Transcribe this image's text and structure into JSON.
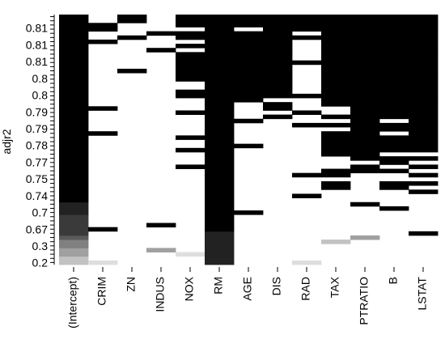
{
  "chart_data": {
    "type": "heatmap",
    "ylabel": "adjr2",
    "xlabel": "",
    "title": "",
    "variables": [
      "(Intercept)",
      "CRIM",
      "ZN",
      "INDUS",
      "NOX",
      "RM",
      "AGE",
      "DIS",
      "RAD",
      "TAX",
      "PTRATIO",
      "B",
      "LSTAT"
    ],
    "y_tick_labels": [
      "0.2",
      "0.3",
      "0.67",
      "0.7",
      "0.74",
      "0.75",
      "0.77",
      "0.78",
      "0.79",
      "0.79",
      "0.8",
      "0.8",
      "0.81",
      "0.81",
      "0.81"
    ],
    "n_models": 60,
    "row_order": "bottom-to-top (row 0 = lowest adjr2)",
    "shade_levels": [
      "#ffffff",
      "#dedede",
      "#c2c2c2",
      "#a0a0a0",
      "#808080",
      "#5a5a5a",
      "#3a3a3a",
      "#222222",
      "#000000"
    ],
    "intercept_shades": [
      2,
      2,
      3,
      3,
      4,
      4,
      5,
      6,
      6,
      6,
      6,
      6,
      7,
      7,
      7
    ],
    "rm_shades": [
      7,
      7,
      7,
      7,
      7,
      7,
      7,
      7
    ],
    "inclusion_runs": {
      "CRIM": [
        [
          0,
          0,
          1
        ],
        [
          8,
          8,
          8
        ],
        [
          31,
          31,
          8
        ],
        [
          37,
          37,
          8
        ],
        [
          53,
          53,
          8
        ],
        [
          56,
          56,
          8
        ],
        [
          57,
          57,
          8
        ]
      ],
      "ZN": [
        [
          46,
          46,
          8
        ],
        [
          54,
          54,
          8
        ],
        [
          58,
          59,
          8
        ]
      ],
      "INDUS": [
        [
          3,
          3,
          3
        ],
        [
          9,
          9,
          8
        ],
        [
          51,
          51,
          8
        ],
        [
          55,
          55,
          8
        ]
      ],
      "NOX": [
        [
          2,
          2,
          1
        ],
        [
          23,
          23,
          8
        ],
        [
          27,
          27,
          8
        ],
        [
          30,
          30,
          8
        ],
        [
          36,
          36,
          8
        ],
        [
          40,
          40,
          8
        ],
        [
          41,
          41,
          8
        ],
        [
          44,
          44,
          8
        ],
        [
          45,
          50,
          8
        ],
        [
          52,
          52,
          8
        ],
        [
          54,
          55,
          8
        ],
        [
          57,
          59,
          8
        ]
      ],
      "AGE": [
        [
          12,
          12,
          8
        ],
        [
          28,
          28,
          8
        ],
        [
          34,
          34,
          8
        ],
        [
          39,
          39,
          8
        ],
        [
          40,
          41,
          8
        ],
        [
          42,
          48,
          8
        ],
        [
          49,
          54,
          8
        ],
        [
          55,
          55,
          8
        ],
        [
          57,
          59,
          8
        ]
      ],
      "DIS": [
        [
          35,
          35,
          8
        ],
        [
          37,
          38,
          8
        ],
        [
          40,
          40,
          8
        ],
        [
          41,
          59,
          8
        ]
      ],
      "RAD": [
        [
          0,
          0,
          1
        ],
        [
          16,
          16,
          8
        ],
        [
          21,
          21,
          8
        ],
        [
          33,
          33,
          8
        ],
        [
          36,
          36,
          8
        ],
        [
          40,
          40,
          8
        ],
        [
          48,
          48,
          8
        ],
        [
          54,
          54,
          8
        ],
        [
          56,
          56,
          8
        ],
        [
          57,
          59,
          8
        ]
      ],
      "TAX": [
        [
          5,
          5,
          2
        ],
        [
          18,
          18,
          8
        ],
        [
          19,
          19,
          8
        ],
        [
          21,
          22,
          8
        ],
        [
          26,
          26,
          8
        ],
        [
          27,
          27,
          8
        ],
        [
          28,
          28,
          8
        ],
        [
          29,
          29,
          8
        ],
        [
          30,
          31,
          8
        ],
        [
          33,
          33,
          8
        ],
        [
          35,
          35,
          8
        ],
        [
          38,
          38,
          8
        ],
        [
          39,
          39,
          8
        ],
        [
          40,
          45,
          8
        ],
        [
          46,
          46,
          8
        ],
        [
          47,
          52,
          8
        ],
        [
          53,
          53,
          8
        ],
        [
          54,
          54,
          8
        ],
        [
          55,
          59,
          8
        ]
      ],
      "PTRATIO": [
        [
          6,
          6,
          3
        ],
        [
          14,
          14,
          8
        ],
        [
          22,
          22,
          8
        ],
        [
          23,
          23,
          8
        ],
        [
          25,
          59,
          8
        ]
      ],
      "B": [
        [
          13,
          13,
          8
        ],
        [
          18,
          18,
          8
        ],
        [
          19,
          19,
          8
        ],
        [
          22,
          22,
          8
        ],
        [
          24,
          24,
          8
        ],
        [
          25,
          25,
          8
        ],
        [
          27,
          28,
          8
        ],
        [
          29,
          29,
          8
        ],
        [
          30,
          30,
          8
        ],
        [
          32,
          32,
          8
        ],
        [
          33,
          33,
          8
        ],
        [
          35,
          35,
          8
        ],
        [
          36,
          36,
          8
        ],
        [
          37,
          37,
          8
        ],
        [
          38,
          38,
          8
        ],
        [
          39,
          39,
          8
        ],
        [
          40,
          59,
          8
        ]
      ],
      "LSTAT": [
        [
          7,
          7,
          8
        ],
        [
          17,
          17,
          8
        ],
        [
          19,
          19,
          8
        ],
        [
          21,
          21,
          8
        ],
        [
          23,
          23,
          8
        ],
        [
          25,
          25,
          8
        ],
        [
          27,
          27,
          8
        ],
        [
          28,
          28,
          8
        ],
        [
          29,
          59,
          8
        ]
      ]
    }
  }
}
